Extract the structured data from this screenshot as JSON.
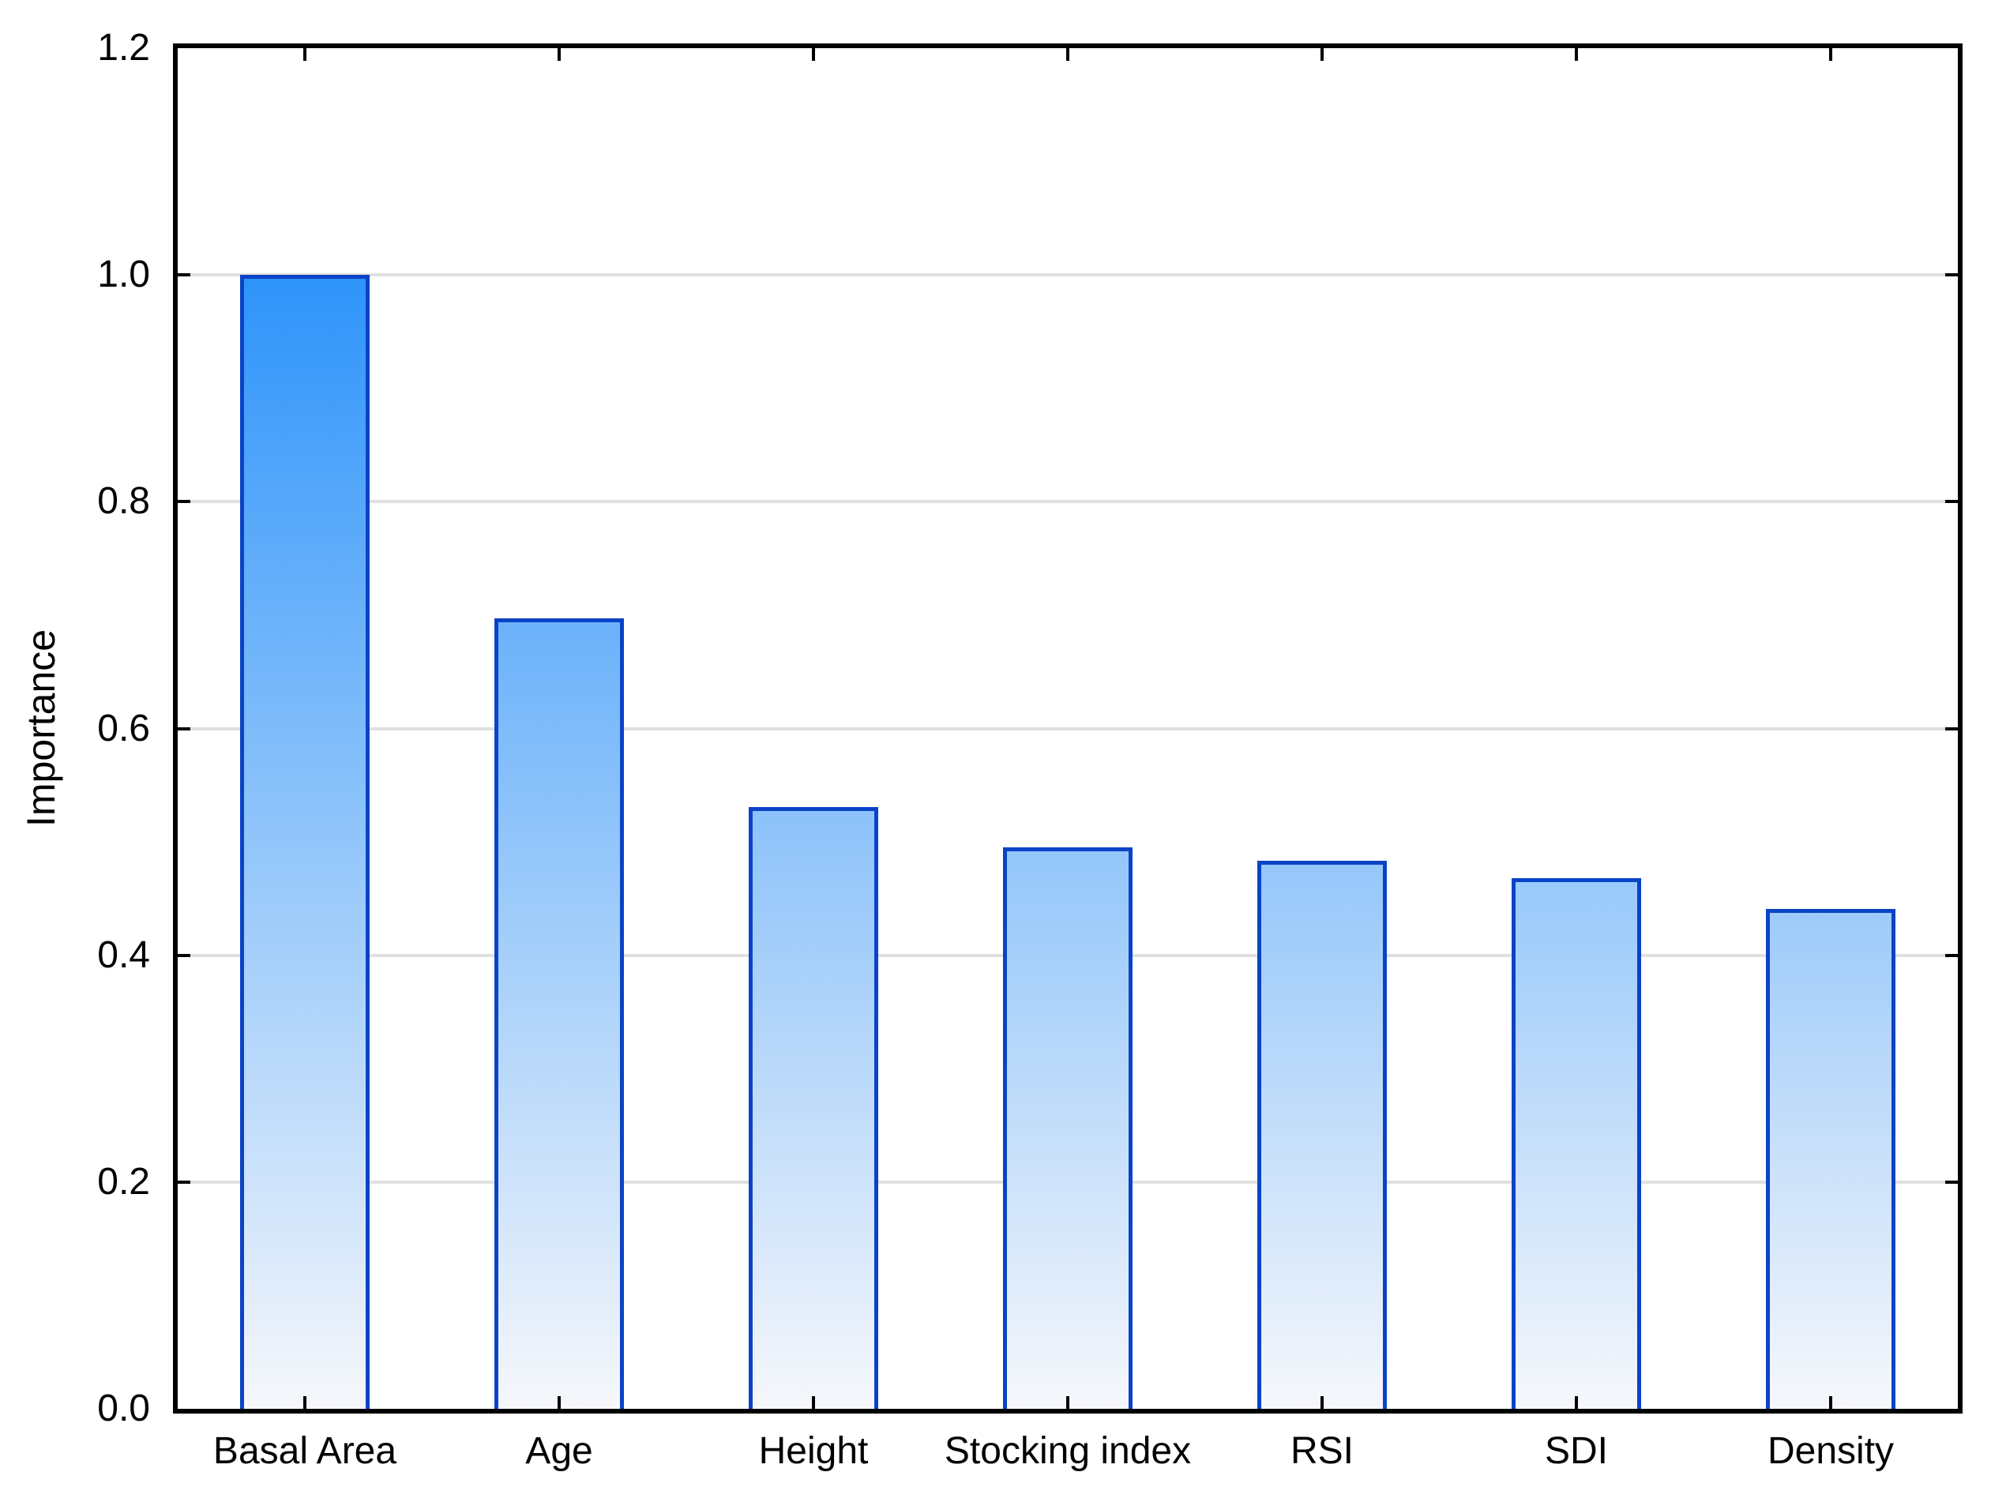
{
  "chart_data": {
    "type": "bar",
    "categories": [
      "Basal Area",
      "Age",
      "Height",
      "Stocking index",
      "RSI",
      "SDI",
      "Density"
    ],
    "values": [
      1.0,
      0.697,
      0.531,
      0.495,
      0.483,
      0.468,
      0.441
    ],
    "title": "",
    "xlabel": "",
    "ylabel": "Importance",
    "ylim": [
      0.0,
      1.2
    ],
    "ytick_labels": [
      "0.0",
      "0.2",
      "0.4",
      "0.6",
      "0.8",
      "1.0",
      "1.2"
    ],
    "ytick_values": [
      0.0,
      0.2,
      0.4,
      0.6,
      0.8,
      1.0,
      1.2
    ],
    "grid": "horizontal",
    "legend_position": "none",
    "colors": {
      "bar_border": "#0b43c6",
      "bar_gradient_top_at_value_1": "#2e94fa",
      "bar_gradient_bottom": "#f6f7fb",
      "gridline": "#e0e0e0",
      "axis_frame": "#000000",
      "tick": "#000000",
      "text": "#000000",
      "background": "#ffffff"
    }
  }
}
